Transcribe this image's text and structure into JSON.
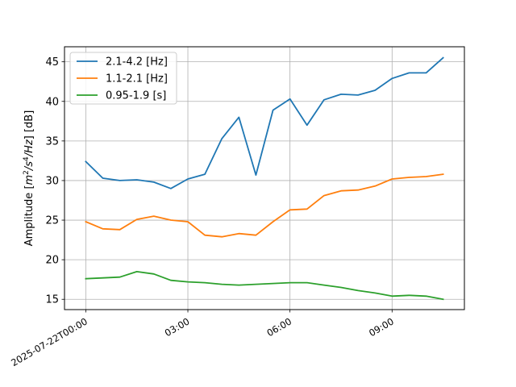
{
  "chart_data": {
    "type": "line",
    "xlabel": "",
    "ylabel": "Amplitude [m²/s⁴/Hz] [dB]",
    "ylim": [
      13.7,
      46.9
    ],
    "xlim": [
      "2025-07-21T23:22:30",
      "2025-07-22T11:07:30"
    ],
    "grid": true,
    "legend_position": "upper-left",
    "x": [
      "2025-07-22T00:00",
      "2025-07-22T00:30",
      "2025-07-22T01:00",
      "2025-07-22T01:30",
      "2025-07-22T02:00",
      "2025-07-22T02:30",
      "2025-07-22T03:00",
      "2025-07-22T03:30",
      "2025-07-22T04:00",
      "2025-07-22T04:30",
      "2025-07-22T05:00",
      "2025-07-22T05:30",
      "2025-07-22T06:00",
      "2025-07-22T06:30",
      "2025-07-22T07:00",
      "2025-07-22T07:30",
      "2025-07-22T08:00",
      "2025-07-22T08:30",
      "2025-07-22T09:00",
      "2025-07-22T09:30",
      "2025-07-22T10:00",
      "2025-07-22T10:30"
    ],
    "x_ticks": [
      {
        "value": "2025-07-22T00:00",
        "label": "2025-07-22T00:00"
      },
      {
        "value": "2025-07-22T03:00",
        "label": "03:00"
      },
      {
        "value": "2025-07-22T06:00",
        "label": "06:00"
      },
      {
        "value": "2025-07-22T09:00",
        "label": "09:00"
      }
    ],
    "y_ticks": [
      15,
      20,
      25,
      30,
      35,
      40,
      45
    ],
    "series": [
      {
        "name": "2.1-4.2 [Hz]",
        "color": "#1f77b4",
        "values": [
          32.4,
          30.3,
          30.0,
          30.1,
          29.8,
          29.0,
          30.2,
          30.8,
          35.3,
          38.0,
          30.7,
          38.9,
          40.3,
          37.0,
          40.2,
          40.9,
          40.8,
          41.4,
          42.9,
          43.6,
          43.6,
          45.5
        ]
      },
      {
        "name": "1.1-2.1 [Hz]",
        "color": "#ff7f0e",
        "values": [
          24.8,
          23.9,
          23.8,
          25.1,
          25.5,
          25.0,
          24.8,
          23.1,
          22.9,
          23.3,
          23.1,
          24.8,
          26.3,
          26.4,
          28.1,
          28.7,
          28.8,
          29.3,
          30.2,
          30.4,
          30.5,
          30.8
        ]
      },
      {
        "name": "0.95-1.9 [s]",
        "color": "#2ca02c",
        "values": [
          17.6,
          17.7,
          17.8,
          18.5,
          18.2,
          17.4,
          17.2,
          17.1,
          16.9,
          16.8,
          16.9,
          17.0,
          17.1,
          17.1,
          16.8,
          16.5,
          16.1,
          15.8,
          15.4,
          15.5,
          15.4,
          15.0
        ]
      }
    ]
  }
}
